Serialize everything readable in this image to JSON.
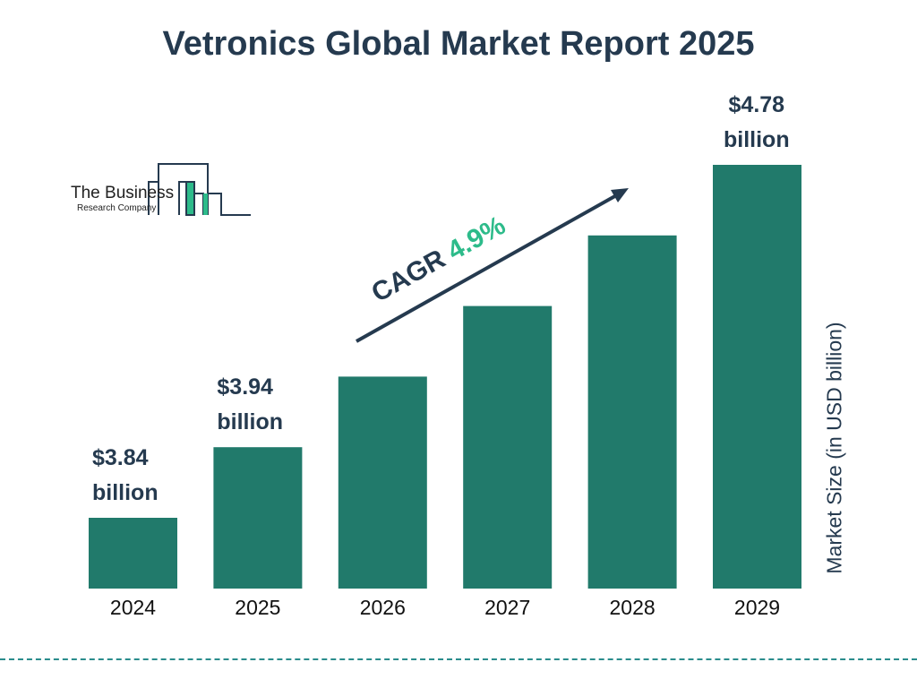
{
  "title": "Vetronics Global Market Report 2025",
  "logo": {
    "line1": "The Business",
    "line2": "Research Company"
  },
  "chart_data": {
    "type": "bar",
    "categories": [
      "2024",
      "2025",
      "2026",
      "2027",
      "2028",
      "2029"
    ],
    "values": [
      3.84,
      3.94,
      4.13,
      4.34,
      4.55,
      4.78
    ],
    "data_labels": [
      {
        "index": 0,
        "value": "$3.84",
        "unit": "billion"
      },
      {
        "index": 1,
        "value": "$3.94",
        "unit": "billion"
      },
      {
        "index": 5,
        "value": "$4.78",
        "unit": "billion"
      }
    ],
    "ylabel": "Market Size (in USD billion)",
    "xlabel": "",
    "annotation": {
      "label": "CAGR",
      "value": "4.9%"
    },
    "grid": false,
    "bar_color": "#217a6b",
    "accent_color": "#2dbb8a",
    "text_color": "#253a4f"
  }
}
